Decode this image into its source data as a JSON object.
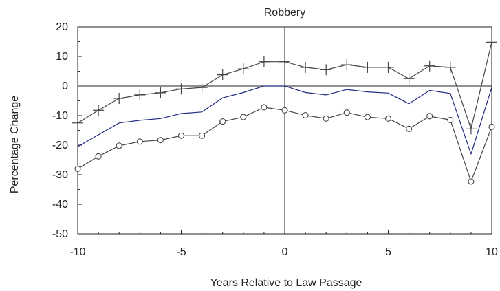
{
  "chart_data": {
    "type": "line",
    "title": "Robbery",
    "xlabel": "Years Relative to Law Passage",
    "ylabel": "Percentage Change",
    "xlim": [
      -10,
      10
    ],
    "ylim": [
      -50,
      20
    ],
    "x_ticks": [
      "-10",
      "-5",
      "0",
      "5",
      "10"
    ],
    "x_tick_values": [
      -10,
      -5,
      0,
      5,
      10
    ],
    "y_ticks": [
      "20",
      "10",
      "0",
      "-10",
      "-20",
      "-30",
      "-40",
      "-50"
    ],
    "y_tick_values": [
      20,
      10,
      0,
      -10,
      -20,
      -30,
      -40,
      -50
    ],
    "grid": false,
    "zero_line": true,
    "vertical_reference_line_x": 0,
    "x": [
      -10,
      -9,
      -8,
      -7,
      -6,
      -5,
      -4,
      -3,
      -2,
      -1,
      0,
      1,
      2,
      3,
      4,
      5,
      6,
      7,
      8,
      9,
      10
    ],
    "series": [
      {
        "marker": "plus",
        "color": "#444444",
        "values": [
          -12.5,
          -8.2,
          -4.2,
          -3.0,
          -2.3,
          -1.0,
          -0.5,
          3.8,
          5.8,
          8.2,
          8.2,
          6.3,
          5.5,
          7.2,
          6.3,
          6.3,
          2.5,
          6.8,
          6.3,
          -14.5,
          14.8
        ]
      },
      {
        "marker": "none",
        "color": "#1f2a80",
        "values": [
          -20.5,
          -16.5,
          -12.5,
          -11.6,
          -11.0,
          -9.3,
          -8.8,
          -4.0,
          -2.2,
          0.0,
          0.0,
          -2.2,
          -3.0,
          -1.2,
          -2.0,
          -2.4,
          -6.0,
          -1.5,
          -2.5,
          -23.0,
          -0.5
        ]
      },
      {
        "marker": "circle",
        "color": "#444444",
        "values": [
          -28.0,
          -23.8,
          -20.2,
          -18.8,
          -18.3,
          -16.8,
          -16.8,
          -12.0,
          -10.5,
          -7.2,
          -8.2,
          -9.9,
          -11.0,
          -9.0,
          -10.5,
          -11.0,
          -14.5,
          -10.2,
          -11.5,
          -32.3,
          -13.8
        ]
      }
    ]
  }
}
